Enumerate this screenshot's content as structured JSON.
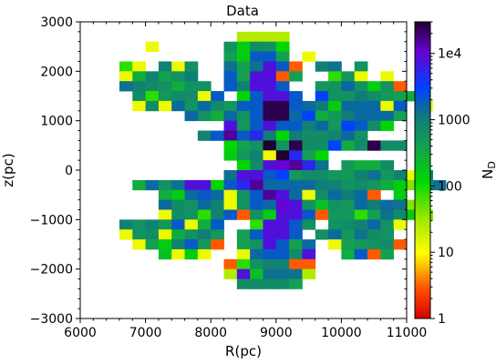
{
  "chart_data": {
    "type": "heatmap",
    "title": "Data",
    "xlabel": "R(pc)",
    "ylabel": "z(pc)",
    "xlim": [
      6000,
      11000
    ],
    "ylim": [
      -3000,
      3000
    ],
    "x_ticks": [
      "6000",
      "7000",
      "8000",
      "9000",
      "10000",
      "11000"
    ],
    "y_ticks": [
      "3000",
      "2000",
      "1000",
      "0",
      "−1000",
      "−2000",
      "−3000"
    ],
    "colorbar": {
      "label": "N",
      "label_sub": "D",
      "scale": "log",
      "range": [
        1,
        30000
      ],
      "tick_labels": [
        "1",
        "10",
        "100",
        "1000",
        "1e4"
      ],
      "tick_values": [
        1,
        10,
        100,
        1000,
        10000
      ]
    },
    "bin_size": {
      "R": 200,
      "z": 200
    },
    "grid_R_start": 6200,
    "grid_z_top": 2800,
    "rows": [
      "...........AAAA.............",
      "....Y.....HLGHK.............",
      "..........MLNNM.Y...........",
      "..OY.JYH..EMEBNR.JE.H.......",
      "..YDJMHT..NMBBRM..OPY.Y.....",
      "..EJGHDHH.NJBBN..PHSHLHR....",
      "...GOPGGYN.KNBBN.UHHTGPMD...",
      "...YGYSHSGPNNFFNSTLSSSYN.Y..",
      ".......SHDSHNFFSUDPTSSSM....",
      "..........BPNBNNJSPUNGK.....",
      "........JNWNCTKTGGJSH.......",
      "..........KMHXHFGGUDGFGG.....",
      "..........LPJYXCMK..........",
      "...........KGBVWCE.PDDG.....",
      "..........EBBNUPGGPPJEPJYJ...",
      "...DSHEBBKNCWSSSSTJHGPDLQPE.",
      ".....DLSNSYHNWBSYGSTSR.L....",
      ".....SGHSJYHNSVBHIHPSTSEQ...",
      ".....YGHOJNRHLBBNRPPOMEGLQ..",
      "..JHJPNYDN..OBBNH.HGJSHY.....",
      "..YHGYDHTP.MNBBN.HSPEGH.....",
      "...YMLJNPR.MHBNMS.YMPHGR....",
      ".....IYLY..YSNNGB..DNRM.....",
      "..........ROHJJRR...........",
      "..........ABIEEEA...........",
      "...........GGGGM............"
    ],
    "legend_codes": {
      "A": 25,
      "B": 8000,
      "C": 5000,
      "D": 300,
      "E": 1300,
      "F": 25000,
      "G": 700,
      "H": 600,
      "I": 200,
      "J": 900,
      "K": 120,
      "L": 150,
      "M": 400,
      "N": 2000,
      "O": 80,
      "P": 500,
      "Q": 40,
      "R": 3,
      "S": 1500,
      "T": 1000,
      "U": 3000,
      "V": 10000,
      "W": 15000,
      "X": 30000,
      "Y": 12
    }
  }
}
